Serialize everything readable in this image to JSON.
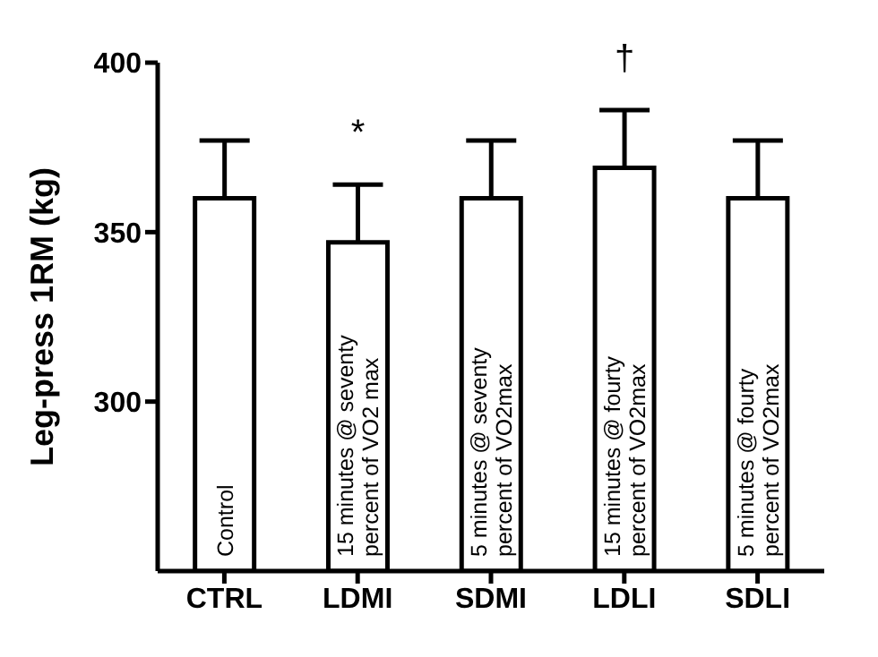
{
  "chart_data": {
    "type": "bar",
    "ylabel": "Leg-press 1RM (kg)",
    "categories": [
      "CTRL",
      "LDMI",
      "SDMI",
      "LDLI",
      "SDLI"
    ],
    "series": [
      {
        "color": "#ffffff",
        "values": [
          360,
          347,
          360,
          369,
          360
        ],
        "errors": [
          [
            360,
            377
          ],
          [
            347,
            364
          ],
          [
            360,
            377
          ],
          [
            369,
            386
          ],
          [
            360,
            377
          ]
        ]
      }
    ],
    "ylim": [
      250,
      400
    ],
    "yticks": [
      300,
      350,
      400
    ],
    "grid": false,
    "legend": false,
    "annotations": [
      "Control",
      "15 minutes @ seventy\npercent of VO2 max",
      "5 minutes @ seventy\npercent of VO2max",
      "15 minutes @ fourty\npercent of VO2max",
      "5 minutes @ fourty\npercent of VO2max",
      {
        "text": "*",
        "x": "LDMI",
        "y": 364
      },
      {
        "text": "†",
        "x": "LDLI",
        "y": 386
      }
    ]
  }
}
